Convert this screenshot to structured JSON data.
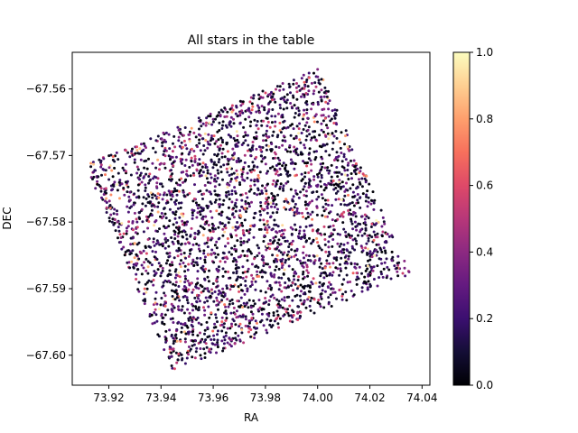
{
  "chart_data": {
    "type": "scatter",
    "title": "All stars in the table",
    "xlabel": "RA",
    "ylabel": "DEC",
    "xlim": [
      73.906,
      74.043
    ],
    "ylim": [
      -67.6045,
      -67.5545
    ],
    "xticks": [
      73.92,
      73.94,
      73.96,
      73.98,
      74.0,
      74.02,
      74.04
    ],
    "xtick_labels": [
      "73.92",
      "73.94",
      "73.96",
      "73.98",
      "74.00",
      "74.02",
      "74.04"
    ],
    "yticks": [
      -67.56,
      -67.57,
      -67.58,
      -67.59,
      -67.6
    ],
    "ytick_labels": [
      "−67.56",
      "−67.57",
      "−67.58",
      "−67.59",
      "−67.60"
    ],
    "footprint_corners": [
      [
        73.911,
        -67.5714
      ],
      [
        74.0005,
        -67.5568
      ],
      [
        74.0355,
        -67.5878
      ],
      [
        73.9445,
        -67.6025
      ]
    ],
    "point_count": 3200,
    "color_distribution": "mostly 0.0-0.4, few above 0.6",
    "colorbar": {
      "cmap": "magma",
      "range": [
        0.0,
        1.0
      ],
      "ticks": [
        0.0,
        0.2,
        0.4,
        0.6,
        0.8,
        1.0
      ],
      "tick_labels": [
        "0.0",
        "0.2",
        "0.4",
        "0.6",
        "0.8",
        "1.0"
      ]
    }
  }
}
